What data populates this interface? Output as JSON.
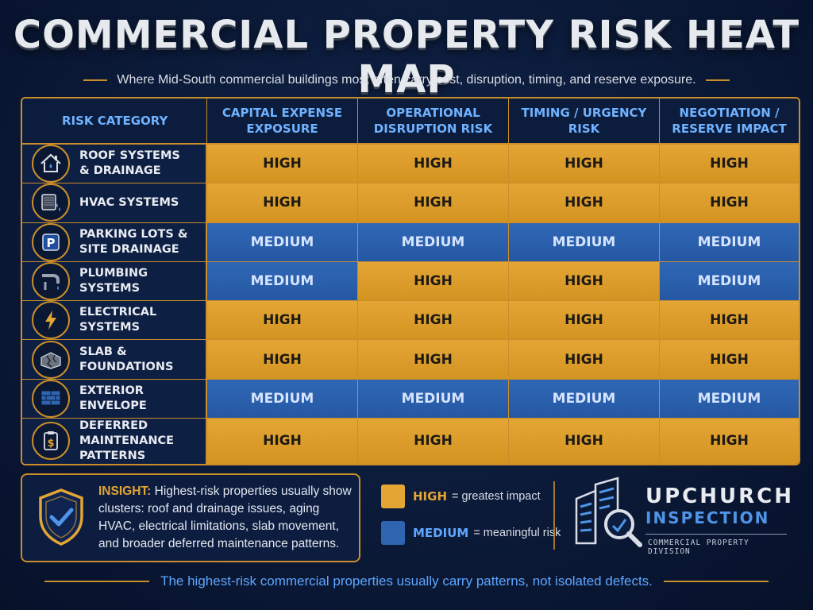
{
  "title": "COMMERCIAL PROPERTY RISK HEAT MAP",
  "subtitle": "Where Mid-South commercial buildings most often carry cost, disruption, timing, and reserve exposure.",
  "table": {
    "corner": "RISK CATEGORY",
    "columns": [
      "CAPITAL EXPENSE\nEXPOSURE",
      "OPERATIONAL\nDISRUPTION RISK",
      "TIMING / URGENCY\nRISK",
      "NEGOTIATION /\nRESERVE IMPACT"
    ],
    "rows": [
      {
        "label": "ROOF SYSTEMS\n& DRAINAGE",
        "icon": "house-icon",
        "values": [
          "HIGH",
          "HIGH",
          "HIGH",
          "HIGH"
        ]
      },
      {
        "label": "HVAC SYSTEMS",
        "icon": "hvac-unit-icon",
        "values": [
          "HIGH",
          "HIGH",
          "HIGH",
          "HIGH"
        ]
      },
      {
        "label": "PARKING LOTS &\nSITE DRAINAGE",
        "icon": "parking-icon",
        "values": [
          "MEDIUM",
          "MEDIUM",
          "MEDIUM",
          "MEDIUM"
        ]
      },
      {
        "label": "PLUMBING SYSTEMS",
        "icon": "pipe-icon",
        "values": [
          "MEDIUM",
          "HIGH",
          "HIGH",
          "MEDIUM"
        ]
      },
      {
        "label": "ELECTRICAL SYSTEMS",
        "icon": "lightning-icon",
        "values": [
          "HIGH",
          "HIGH",
          "HIGH",
          "HIGH"
        ]
      },
      {
        "label": "SLAB & FOUNDATIONS",
        "icon": "cracked-slab-icon",
        "values": [
          "HIGH",
          "HIGH",
          "HIGH",
          "HIGH"
        ]
      },
      {
        "label": "EXTERIOR ENVELOPE",
        "icon": "brick-wall-icon",
        "values": [
          "MEDIUM",
          "MEDIUM",
          "MEDIUM",
          "MEDIUM"
        ]
      },
      {
        "label": "DEFERRED MAINTENANCE\nPATTERNS",
        "icon": "clipboard-dollar-icon",
        "values": [
          "HIGH",
          "HIGH",
          "HIGH",
          "HIGH"
        ]
      }
    ]
  },
  "chart_data": {
    "type": "heatmap",
    "title": "COMMERCIAL PROPERTY RISK HEAT MAP",
    "subtitle": "Where Mid-South commercial buildings most often carry cost, disruption, timing, and reserve exposure.",
    "x": [
      "CAPITAL EXPENSE EXPOSURE",
      "OPERATIONAL DISRUPTION RISK",
      "TIMING / URGENCY RISK",
      "NEGOTIATION / RESERVE IMPACT"
    ],
    "y": [
      "ROOF SYSTEMS & DRAINAGE",
      "HVAC SYSTEMS",
      "PARKING LOTS & SITE DRAINAGE",
      "PLUMBING SYSTEMS",
      "ELECTRICAL SYSTEMS",
      "SLAB & FOUNDATIONS",
      "EXTERIOR ENVELOPE",
      "DEFERRED MAINTENANCE PATTERNS"
    ],
    "values": [
      [
        "HIGH",
        "HIGH",
        "HIGH",
        "HIGH"
      ],
      [
        "HIGH",
        "HIGH",
        "HIGH",
        "HIGH"
      ],
      [
        "MEDIUM",
        "MEDIUM",
        "MEDIUM",
        "MEDIUM"
      ],
      [
        "MEDIUM",
        "HIGH",
        "HIGH",
        "MEDIUM"
      ],
      [
        "HIGH",
        "HIGH",
        "HIGH",
        "HIGH"
      ],
      [
        "HIGH",
        "HIGH",
        "HIGH",
        "HIGH"
      ],
      [
        "MEDIUM",
        "MEDIUM",
        "MEDIUM",
        "MEDIUM"
      ],
      [
        "HIGH",
        "HIGH",
        "HIGH",
        "HIGH"
      ]
    ],
    "colors": {
      "HIGH": "#e3a534",
      "MEDIUM": "#2e64b0"
    }
  },
  "insight": {
    "key": "INSIGHT:",
    "text": " Highest-risk properties usually show clusters: roof and drainage issues, aging HVAC, electrical limitations, slab movement, and broader deferred maintenance patterns."
  },
  "legend": {
    "high_key": "HIGH",
    "high_desc": "= greatest impact",
    "medium_key": "MEDIUM",
    "medium_desc": "= meaningful risk"
  },
  "brand": {
    "name_line1": "UPCHURCH",
    "name_line2": "INSPECTION",
    "division": "COMMERCIAL PROPERTY DIVISION"
  },
  "footer": "The highest-risk commercial properties usually carry patterns, not isolated defects.",
  "colors": {
    "accent_gold": "#c98e2a",
    "high": "#e3a534",
    "medium": "#2e64b0",
    "header_blue": "#6fb2ff",
    "background": "#0a1630"
  }
}
